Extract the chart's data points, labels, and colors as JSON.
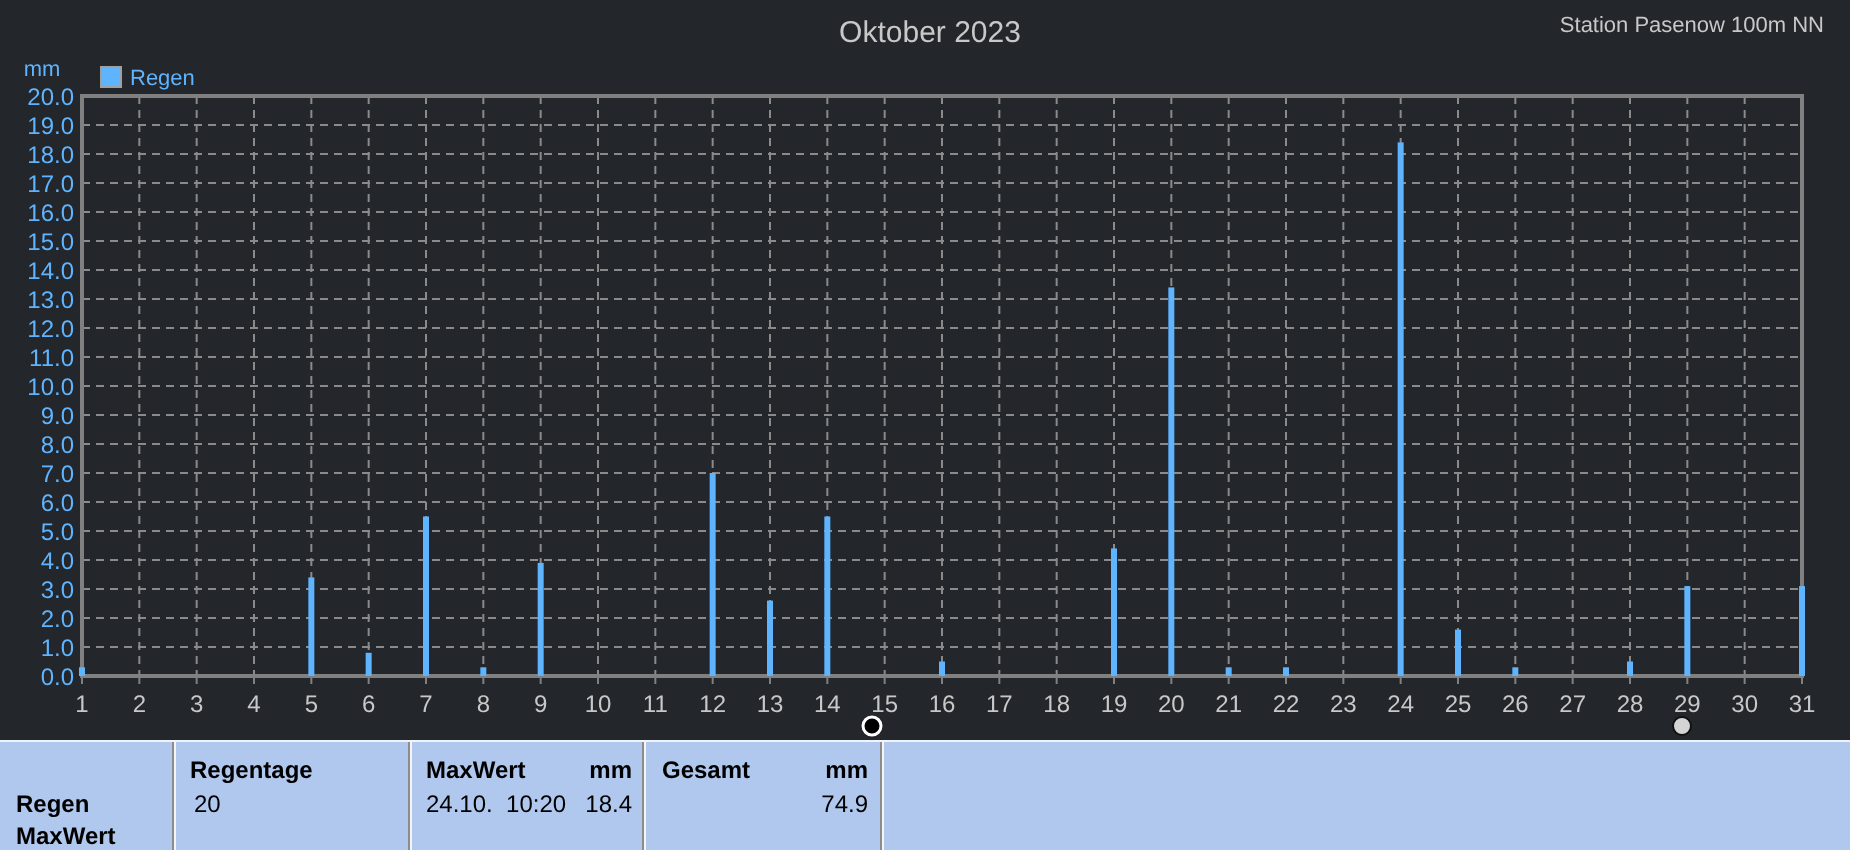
{
  "chart_data": {
    "type": "bar",
    "title": "Oktober 2023",
    "subtitle": "Station Pasenow 100m NN",
    "ylabel": "mm",
    "x": [
      1,
      5,
      6,
      7,
      8,
      9,
      12,
      13,
      14,
      16,
      19,
      20,
      21,
      22,
      24,
      25,
      26,
      28,
      29,
      31
    ],
    "series": [
      {
        "name": "Regen",
        "color": "#5fb4ff",
        "values": [
          0.3,
          3.4,
          0.8,
          5.5,
          0.3,
          3.9,
          7.0,
          2.6,
          5.5,
          0.5,
          4.4,
          13.4,
          0.3,
          0.3,
          18.4,
          1.6,
          0.3,
          0.5,
          3.1,
          3.1
        ]
      }
    ],
    "xlim": [
      1,
      31
    ],
    "xticks": [
      1,
      2,
      3,
      4,
      5,
      6,
      7,
      8,
      9,
      10,
      11,
      12,
      13,
      14,
      15,
      16,
      17,
      18,
      19,
      20,
      21,
      22,
      23,
      24,
      25,
      26,
      27,
      28,
      29,
      30,
      31
    ],
    "ylim": [
      0,
      20
    ],
    "yticks": [
      {
        "value": 0,
        "label": "0.0"
      },
      {
        "value": 1,
        "label": "1.0"
      },
      {
        "value": 2,
        "label": "2.0"
      },
      {
        "value": 3,
        "label": "3.0"
      },
      {
        "value": 4,
        "label": "4.0"
      },
      {
        "value": 5,
        "label": "5.0"
      },
      {
        "value": 6,
        "label": "6.0"
      },
      {
        "value": 7,
        "label": "7.0"
      },
      {
        "value": 8,
        "label": "8.0"
      },
      {
        "value": 9,
        "label": "9.0"
      },
      {
        "value": 10,
        "label": "10.0"
      },
      {
        "value": 11,
        "label": "11.0"
      },
      {
        "value": 12,
        "label": "12.0"
      },
      {
        "value": 13,
        "label": "13.0"
      },
      {
        "value": 14,
        "label": "14.0"
      },
      {
        "value": 15,
        "label": "15.0"
      },
      {
        "value": 16,
        "label": "16.0"
      },
      {
        "value": 17,
        "label": "17.0"
      },
      {
        "value": 18,
        "label": "18.0"
      },
      {
        "value": 19,
        "label": "19.0"
      },
      {
        "value": 20,
        "label": "20.0"
      }
    ],
    "grid": true,
    "legend": "top left",
    "annotations": [
      "Regen",
      "MaxWert",
      "Regentage",
      "20",
      "MaxWert",
      "mm",
      "24.10.  10:20",
      "18.4",
      "Gesamt",
      "mm",
      "74.9"
    ]
  }
}
